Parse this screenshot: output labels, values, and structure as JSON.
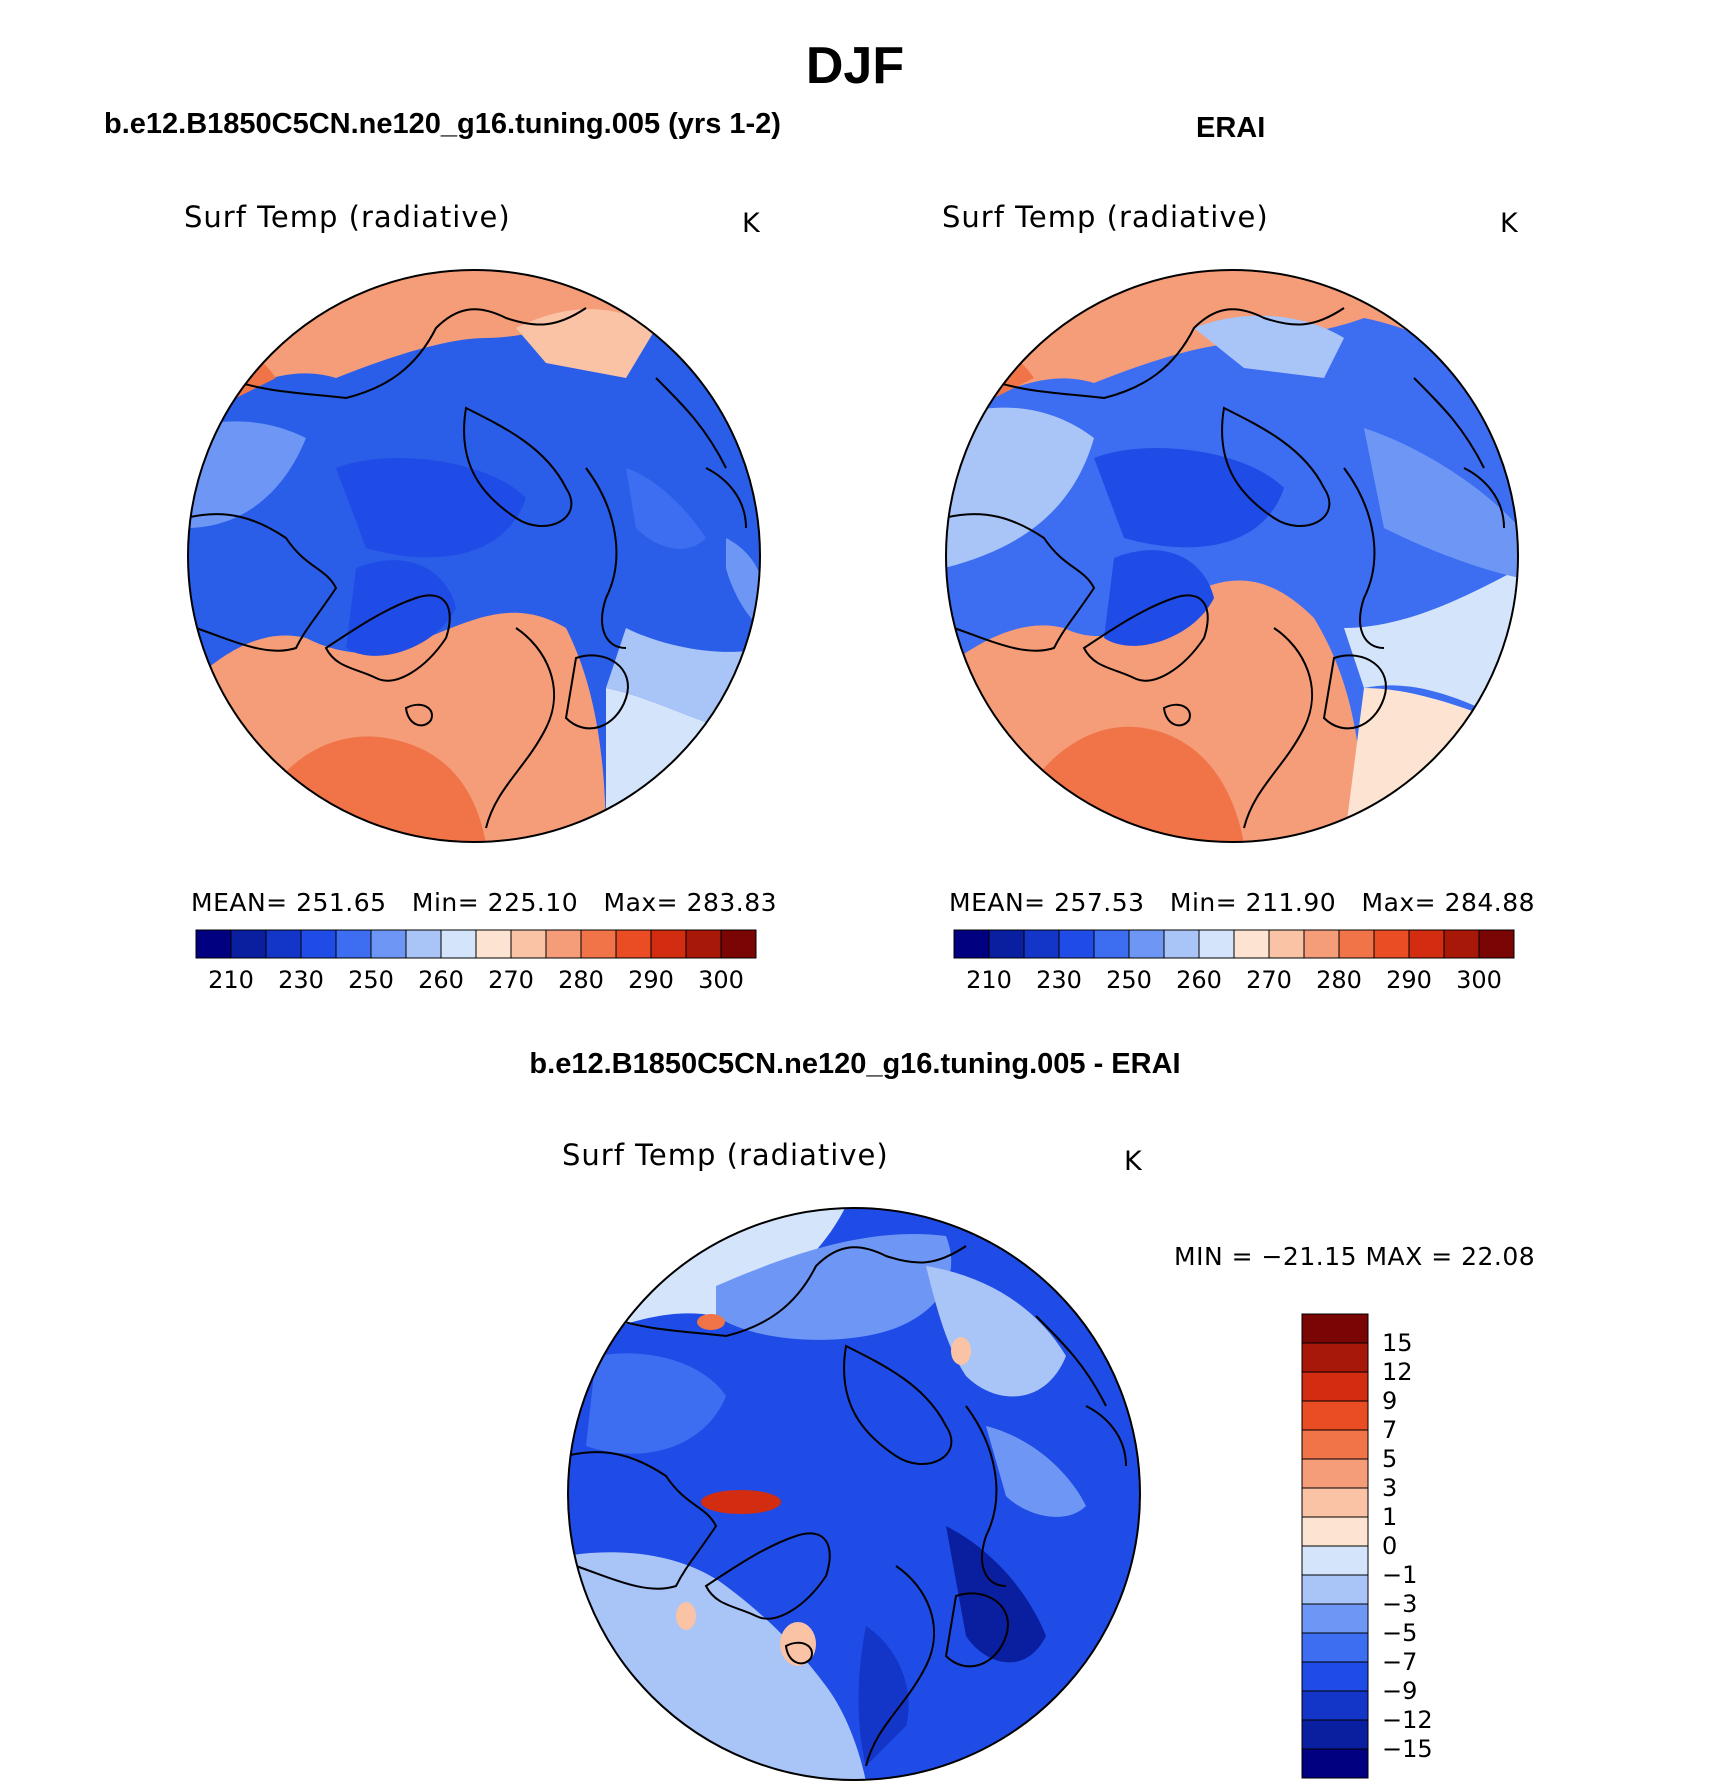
{
  "title": "DJF",
  "panels": {
    "model": {
      "title": "b.e12.B1850C5CN.ne120_g16.tuning.005 (yrs 1-2)",
      "variable": "Surf Temp (radiative)",
      "units": "K",
      "stats": {
        "mean_label": "MEAN=",
        "mean": "251.65",
        "min_label": "Min=",
        "min": "225.10",
        "max_label": "Max=",
        "max": "283.83"
      }
    },
    "obs": {
      "title": "ERAI",
      "variable": "Surf Temp (radiative)",
      "units": "K",
      "stats": {
        "mean_label": "MEAN=",
        "mean": "257.53",
        "min_label": "Min=",
        "min": "211.90",
        "max_label": "Max=",
        "max": "284.88"
      }
    },
    "diff": {
      "title": "b.e12.B1850C5CN.ne120_g16.tuning.005 - ERAI",
      "variable": "Surf Temp (radiative)",
      "units": "K",
      "stats": "MIN = −21.15 MAX =   22.08"
    }
  },
  "chart_data": [
    {
      "type": "heatmap",
      "projection": "north-polar-stereographic",
      "title": "b.e12.B1850C5CN.ne120_g16.tuning.005 (yrs 1-2)",
      "variable": "Surf Temp (radiative)",
      "units": "K",
      "mean": 251.65,
      "min": 225.1,
      "max": 283.83,
      "colorbar_labels": [
        "210",
        "230",
        "250",
        "260",
        "270",
        "280",
        "290",
        "300"
      ],
      "colorbar_colors": [
        "#000080",
        "#0a1fa0",
        "#1336c8",
        "#1f4ce6",
        "#3d6ef2",
        "#6e97f5",
        "#a9c4f7",
        "#d3e4fb",
        "#fde4d2",
        "#fac3a6",
        "#f59c78",
        "#f07448",
        "#ea4d23",
        "#d22d10",
        "#a81808",
        "#7a0505"
      ]
    },
    {
      "type": "heatmap",
      "projection": "north-polar-stereographic",
      "title": "ERAI",
      "variable": "Surf Temp (radiative)",
      "units": "K",
      "mean": 257.53,
      "min": 211.9,
      "max": 284.88,
      "colorbar_labels": [
        "210",
        "230",
        "250",
        "260",
        "270",
        "280",
        "290",
        "300"
      ],
      "colorbar_colors": [
        "#000080",
        "#0a1fa0",
        "#1336c8",
        "#1f4ce6",
        "#3d6ef2",
        "#6e97f5",
        "#a9c4f7",
        "#d3e4fb",
        "#fde4d2",
        "#fac3a6",
        "#f59c78",
        "#f07448",
        "#ea4d23",
        "#d22d10",
        "#a81808",
        "#7a0505"
      ]
    },
    {
      "type": "heatmap",
      "projection": "north-polar-stereographic",
      "title": "b.e12.B1850C5CN.ne120_g16.tuning.005 - ERAI",
      "variable": "Surf Temp (radiative)",
      "units": "K",
      "min": -21.15,
      "max": 22.08,
      "colorbar_labels": [
        "15",
        "12",
        "9",
        "7",
        "5",
        "3",
        "1",
        "0",
        "−1",
        "−3",
        "−5",
        "−7",
        "−9",
        "−12",
        "−15"
      ],
      "colorbar_colors": [
        "#7a0505",
        "#a81808",
        "#d22d10",
        "#ea4d23",
        "#f07448",
        "#f59c78",
        "#fac3a6",
        "#fde4d2",
        "#d3e4fb",
        "#a9c4f7",
        "#6e97f5",
        "#3d6ef2",
        "#1f4ce6",
        "#1336c8",
        "#0a1fa0",
        "#000080"
      ]
    }
  ]
}
